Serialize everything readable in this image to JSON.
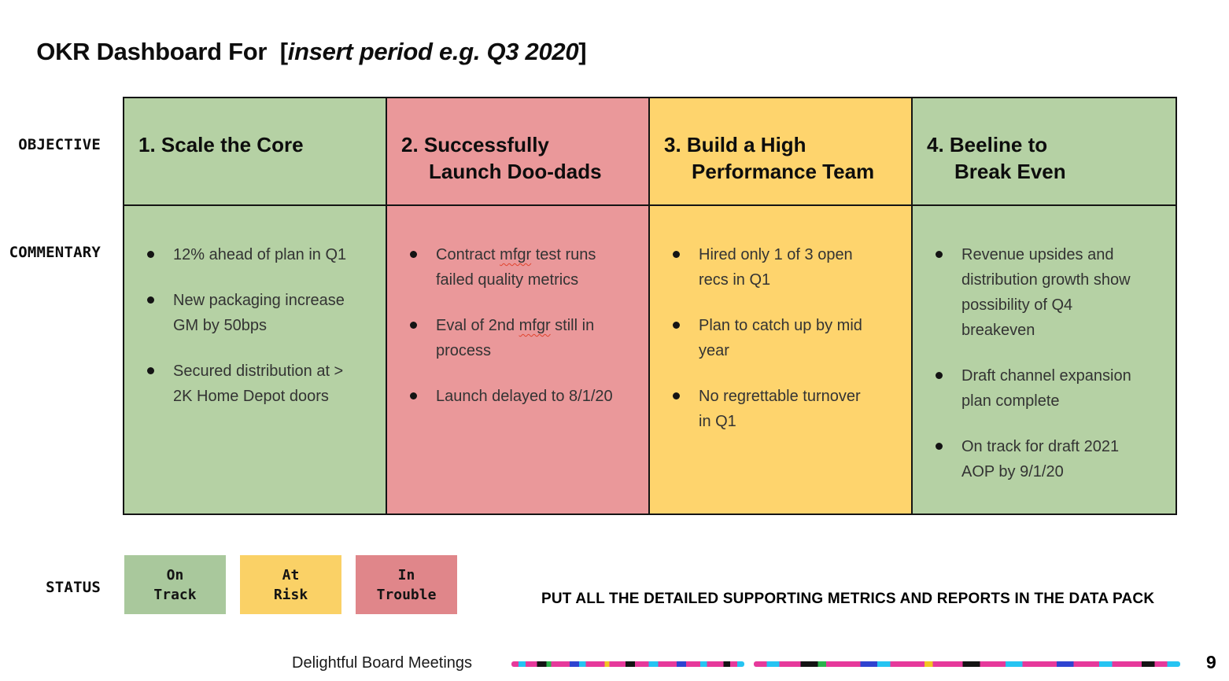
{
  "title": {
    "prefix": "OKR Dashboard For  [",
    "placeholder": "insert period e.g. Q3 2020",
    "suffix": "]"
  },
  "row_labels": {
    "objective": "OBJECTIVE",
    "commentary": "COMMENTARY",
    "status": "STATUS"
  },
  "board": {
    "columns": [
      {
        "objective_lines": [
          "1. Scale the Core"
        ],
        "status": "on_track",
        "bullets": [
          "12% ahead of plan in Q1",
          "New packaging increase GM by 50bps",
          "Secured distribution at > 2K Home Depot doors"
        ]
      },
      {
        "objective_lines": [
          "2. Successfully",
          "Launch Doo-dads"
        ],
        "status": "in_trouble",
        "bullets": [
          "Contract mfgr test runs failed quality metrics",
          "Eval of 2nd mfgr still in process",
          "Launch delayed to 8/1/20"
        ]
      },
      {
        "objective_lines": [
          "3. Build a High",
          "Performance Team"
        ],
        "status": "at_risk",
        "bullets": [
          "Hired only 1 of 3 open recs in Q1",
          "Plan to catch up by mid year",
          "No regrettable turnover in Q1"
        ]
      },
      {
        "objective_lines": [
          "4. Beeline to",
          "Break Even"
        ],
        "status": "on_track",
        "bullets": [
          "Revenue upsides and distribution growth show possibility of Q4 breakeven",
          "Draft channel expansion plan complete",
          "On track for draft 2021 AOP by 9/1/20"
        ]
      }
    ]
  },
  "spellcheck_words": [
    "mfgr"
  ],
  "status_legend": [
    {
      "id": "on_track",
      "lines": [
        "On",
        "Track"
      ],
      "color": "#a9c89c"
    },
    {
      "id": "at_risk",
      "lines": [
        "At",
        "Risk"
      ],
      "color": "#fad166"
    },
    {
      "id": "in_trouble",
      "lines": [
        "In",
        "Trouble"
      ],
      "color": "#e0868a"
    }
  ],
  "note": "PUT ALL THE DETAILED SUPPORTING METRICS AND REPORTS IN THE DATA PACK",
  "footer": {
    "brand": "Delightful Board Meetings",
    "page_number": "9"
  },
  "colors": {
    "on_track": "#b5d1a4",
    "at_risk": "#fed46d",
    "in_trouble": "#ea989a",
    "border": "#141414",
    "title_placeholder": "#a8a8a8"
  }
}
